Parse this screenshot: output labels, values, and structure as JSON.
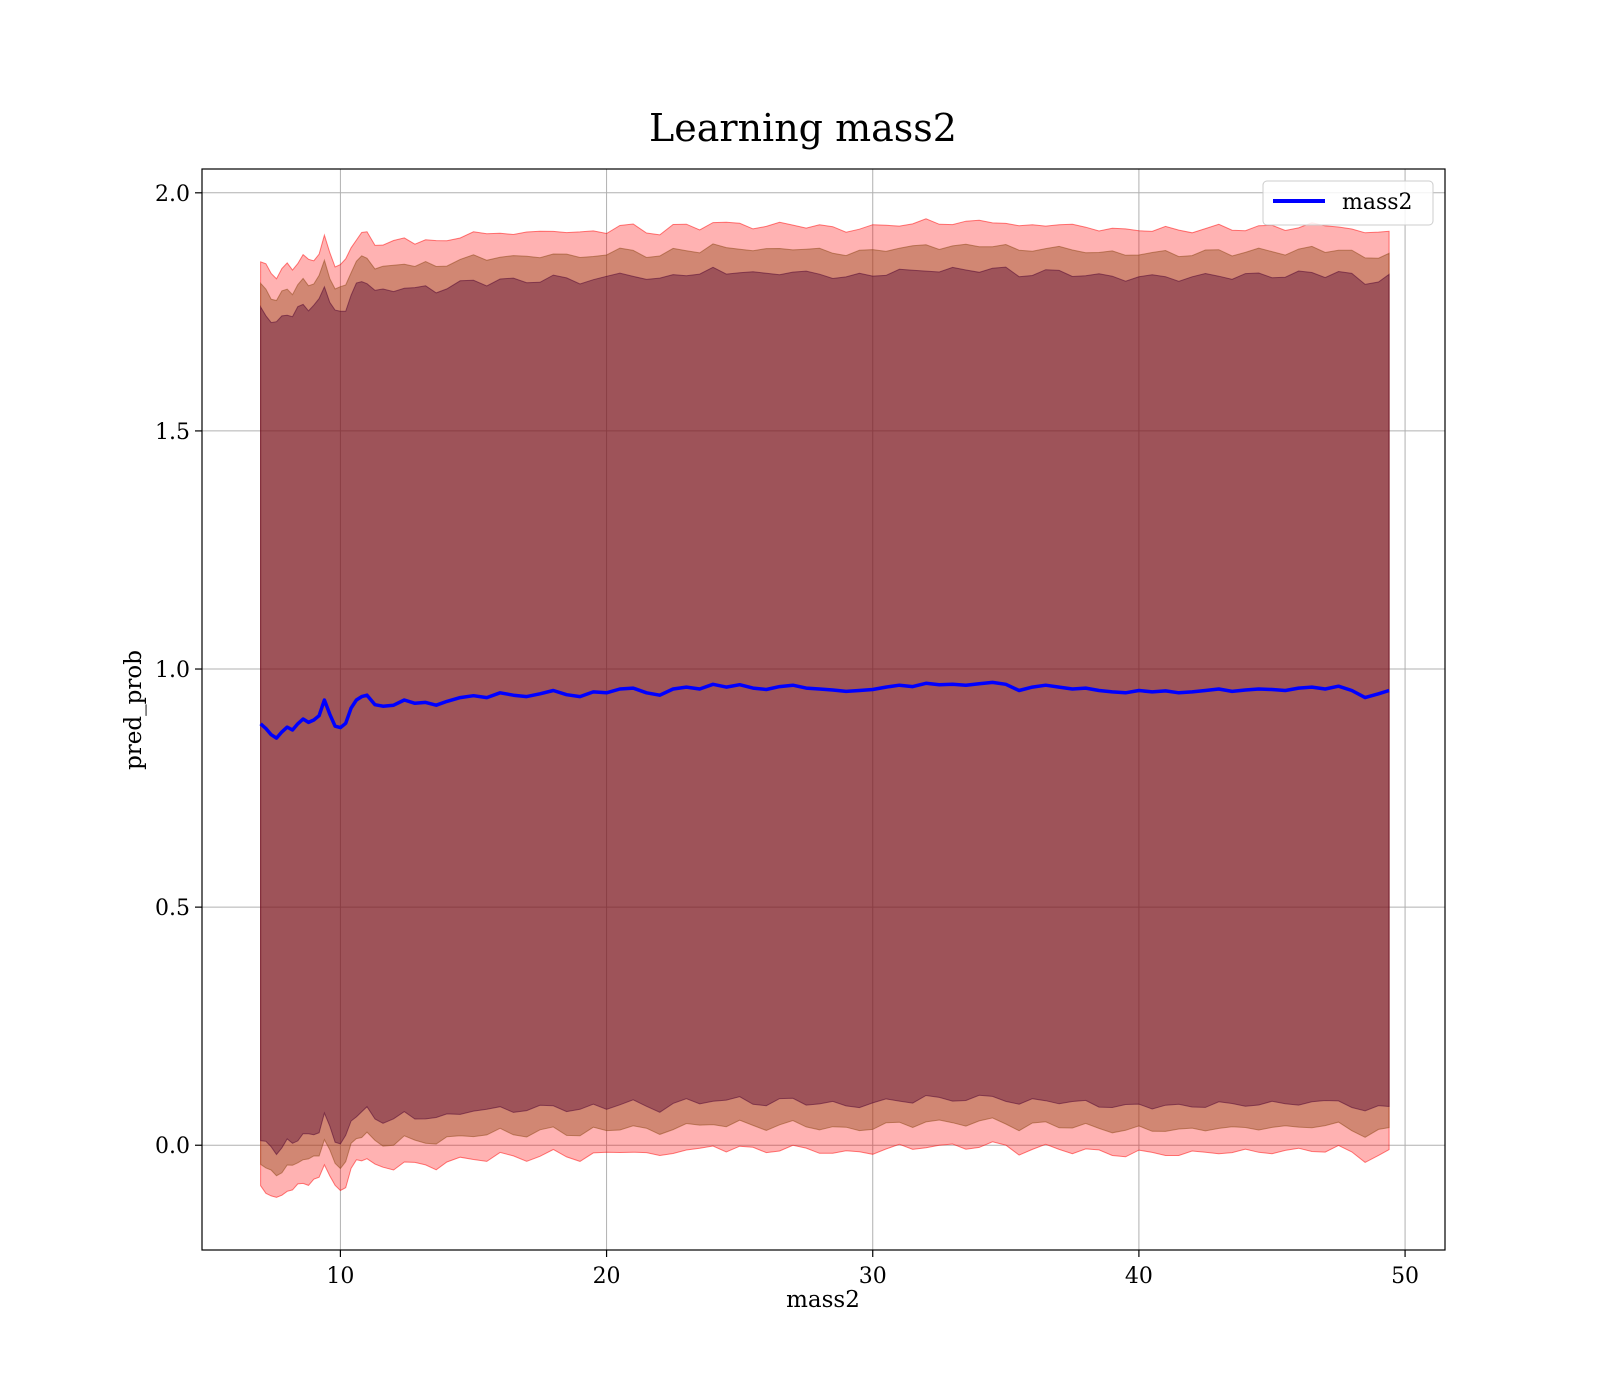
{
  "chart_data": {
    "type": "line",
    "title": "Learning mass2",
    "xlabel": "mass2",
    "ylabel": "pred_prob",
    "xlim": [
      4.8,
      51.5
    ],
    "ylim": [
      -0.22,
      2.05
    ],
    "xticks": [
      10,
      20,
      30,
      40,
      50
    ],
    "yticks": [
      0.0,
      0.5,
      1.0,
      1.5,
      2.0
    ],
    "xtick_labels": [
      "10",
      "20",
      "30",
      "40",
      "50"
    ],
    "ytick_labels": [
      "0.0",
      "0.5",
      "1.0",
      "1.5",
      "2.0"
    ],
    "grid": true,
    "legend": {
      "placement": "top-right",
      "entries": [
        "mass2"
      ]
    },
    "series": [
      {
        "name": "mass2",
        "color": "#0000ff",
        "x": [
          7.0,
          7.2,
          7.4,
          7.6,
          7.8,
          8.0,
          8.2,
          8.4,
          8.6,
          8.8,
          9.0,
          9.2,
          9.4,
          9.6,
          9.8,
          10.0,
          10.2,
          10.4,
          10.6,
          10.8,
          11.0,
          11.3,
          11.6,
          12.0,
          12.4,
          12.8,
          13.2,
          13.6,
          14.0,
          14.5,
          15.0,
          15.5,
          16.0,
          16.5,
          17.0,
          17.5,
          18.0,
          18.5,
          19.0,
          19.5,
          20.0,
          20.5,
          21.0,
          21.5,
          22.0,
          22.5,
          23.0,
          23.5,
          24.0,
          24.5,
          25.0,
          25.5,
          26.0,
          26.5,
          27.0,
          27.5,
          28.0,
          28.5,
          29.0,
          29.5,
          30.0,
          30.5,
          31.0,
          31.5,
          32.0,
          32.5,
          33.0,
          33.5,
          34.0,
          34.5,
          35.0,
          35.5,
          36.0,
          36.5,
          37.0,
          37.5,
          38.0,
          38.5,
          39.0,
          39.5,
          40.0,
          40.5,
          41.0,
          41.5,
          42.0,
          42.5,
          43.0,
          43.5,
          44.0,
          44.5,
          45.0,
          45.5,
          46.0,
          46.5,
          47.0,
          47.5,
          48.0,
          48.5,
          49.0,
          49.4
        ],
        "y": [
          0.885,
          0.875,
          0.862,
          0.855,
          0.868,
          0.878,
          0.872,
          0.885,
          0.895,
          0.888,
          0.893,
          0.902,
          0.935,
          0.905,
          0.88,
          0.877,
          0.886,
          0.918,
          0.935,
          0.942,
          0.945,
          0.925,
          0.922,
          0.924,
          0.935,
          0.928,
          0.93,
          0.924,
          0.932,
          0.94,
          0.944,
          0.94,
          0.95,
          0.945,
          0.942,
          0.948,
          0.955,
          0.946,
          0.942,
          0.952,
          0.95,
          0.958,
          0.96,
          0.95,
          0.945,
          0.958,
          0.962,
          0.958,
          0.968,
          0.962,
          0.967,
          0.96,
          0.957,
          0.963,
          0.966,
          0.96,
          0.958,
          0.956,
          0.953,
          0.955,
          0.957,
          0.962,
          0.966,
          0.963,
          0.97,
          0.967,
          0.968,
          0.966,
          0.969,
          0.972,
          0.968,
          0.955,
          0.962,
          0.966,
          0.962,
          0.958,
          0.96,
          0.955,
          0.952,
          0.95,
          0.955,
          0.952,
          0.954,
          0.95,
          0.952,
          0.955,
          0.958,
          0.953,
          0.956,
          0.958,
          0.957,
          0.955,
          0.96,
          0.962,
          0.958,
          0.964,
          0.955,
          0.94,
          0.948,
          0.955
        ]
      }
    ],
    "bands": [
      {
        "color": "#ff0000",
        "opacity": 0.3,
        "half_width": 0.97
      },
      {
        "color": "#8b4513",
        "opacity": 0.4,
        "half_width": 0.92
      },
      {
        "color": "#4b0030",
        "opacity": 0.38,
        "half_width": 0.87
      }
    ]
  }
}
